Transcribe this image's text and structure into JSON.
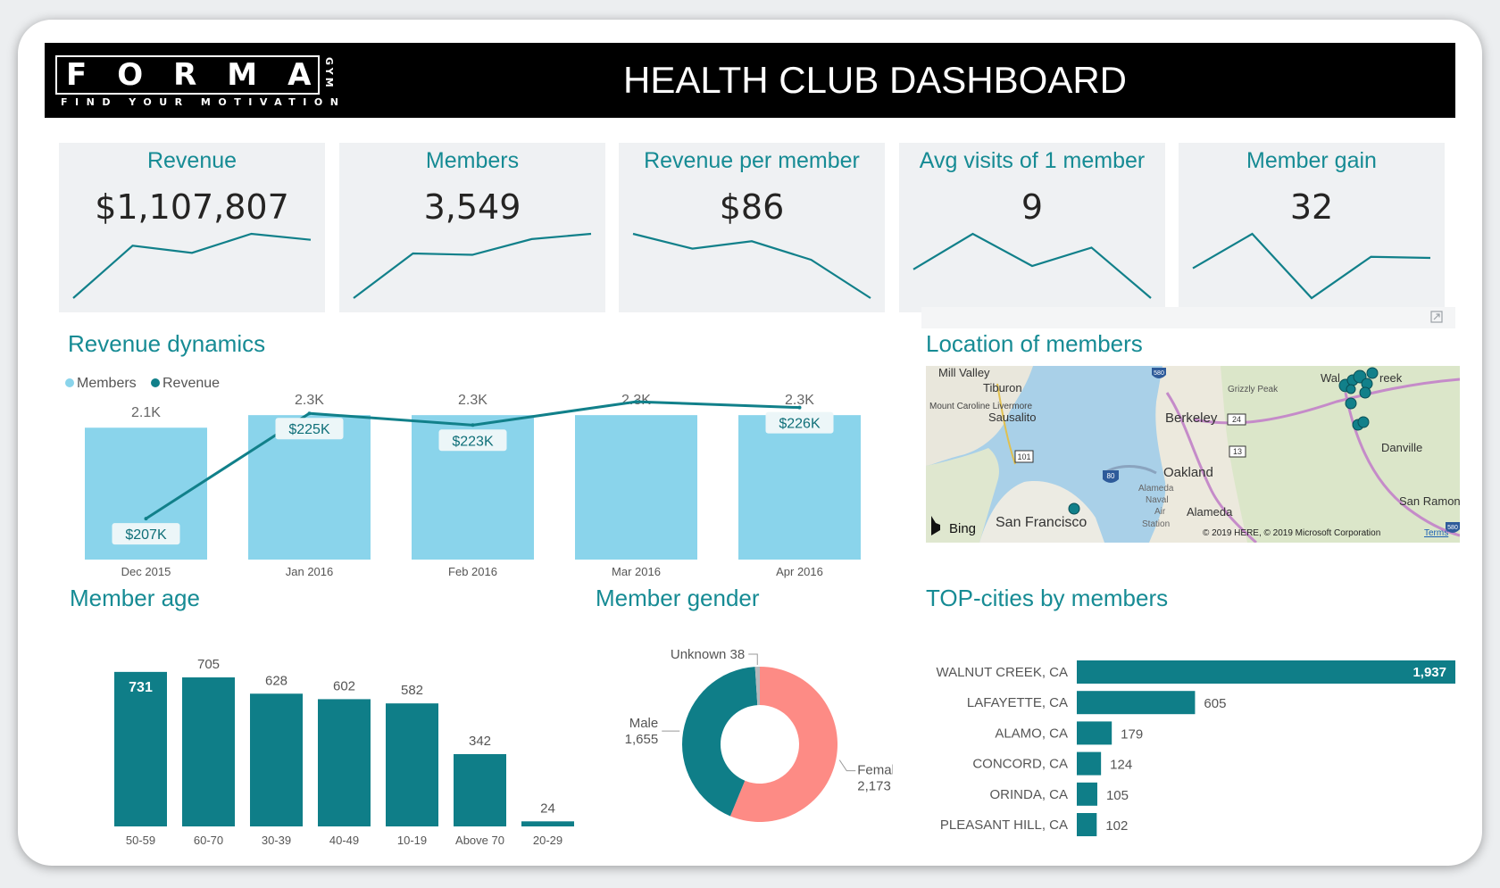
{
  "header": {
    "logo": "FORMA",
    "logo_tagline": "FIND YOUR MOTIVATION",
    "logo_side": "GYM",
    "title": "HEALTH CLUB DASHBOARD"
  },
  "kpis": [
    {
      "label": "Revenue",
      "value": "$1,107,807",
      "trend": [
        1.2,
        5.6,
        5.0,
        6.6,
        6.1
      ]
    },
    {
      "label": "Members",
      "value": "3,549",
      "trend": [
        1.0,
        4.4,
        4.3,
        5.5,
        5.9
      ]
    },
    {
      "label": "Revenue per member",
      "value": "$86",
      "trend": [
        6.2,
        5.0,
        5.6,
        4.1,
        1.0
      ]
    },
    {
      "label": "Avg visits of 1 member",
      "value": "9",
      "trend": [
        3.5,
        6.6,
        3.8,
        5.4,
        1.0
      ]
    },
    {
      "label": "Member gain",
      "value": "32",
      "trend": [
        3.6,
        6.6,
        1.0,
        4.6,
        4.5
      ]
    }
  ],
  "sections": {
    "revenue_dynamics": "Revenue dynamics",
    "location": "Location of members",
    "member_age": "Member age",
    "member_gender": "Member gender",
    "top_cities": "TOP-cities by members"
  },
  "map": {
    "places": [
      "Mill Valley",
      "Tiburon",
      "Mount Caroline Livermore",
      "Sausalito",
      "Berkeley",
      "Grizzly Peak",
      "Walnut Creek",
      "Oakland",
      "Alameda Naval Air Station",
      "Alameda",
      "San Francisco",
      "Danville",
      "San Ramon"
    ],
    "place_lines": {
      "walnut_creek": "Wal",
      "walnut_creek_end": "reek",
      "alameda_naval_1": "Alameda",
      "alameda_naval_2": "Naval",
      "alameda_naval_3": "Air",
      "alameda_naval_4": "Station",
      "mount_caroline": "Mount Caroline Livermore"
    },
    "road_shields": [
      "580",
      "24",
      "101",
      "80",
      "13",
      "580"
    ],
    "credit": "© 2019 HERE, © 2019 Microsoft Corporation",
    "terms": "Terms",
    "bing": "Bing"
  },
  "chart_data": [
    {
      "id": "revenue_dynamics",
      "type": "bar",
      "categories": [
        "Dec 2015",
        "Jan 2016",
        "Feb 2016",
        "Mar 2016",
        "Apr 2016"
      ],
      "legend": [
        "Members",
        "Revenue"
      ],
      "series": [
        {
          "name": "Members",
          "kind": "bar",
          "values": [
            2.1,
            2.3,
            2.3,
            2.3,
            2.3
          ],
          "labels": [
            "2.1K",
            "2.3K",
            "2.3K",
            "2.3K",
            "2.3K"
          ],
          "color": "#8ad4eb"
        },
        {
          "name": "Revenue",
          "kind": "line",
          "values": [
            207,
            225,
            223,
            227,
            226
          ],
          "labels": [
            "$207K",
            "$225K",
            "$223K",
            "",
            "$226K"
          ],
          "color": "#11808a"
        }
      ],
      "ylim_members": [
        0,
        2.7
      ],
      "ylim_revenue": [
        200,
        229
      ]
    },
    {
      "id": "member_age",
      "type": "bar",
      "categories": [
        "50-59",
        "60-70",
        "30-39",
        "40-49",
        "10-19",
        "Above 70",
        "20-29"
      ],
      "values": [
        731,
        705,
        628,
        602,
        582,
        342,
        24
      ],
      "color": "#0f7e88",
      "ylim": [
        0,
        760
      ]
    },
    {
      "id": "member_gender",
      "type": "pie",
      "categories": [
        "Female",
        "Male",
        "Unknown"
      ],
      "values": [
        2173,
        1655,
        38
      ],
      "value_labels": [
        "2,173",
        "1,655",
        "38"
      ],
      "colors": [
        "#fd8b85",
        "#0f7e88",
        "#b3b8bc"
      ]
    },
    {
      "id": "top_cities",
      "type": "bar",
      "orientation": "horizontal",
      "categories": [
        "WALNUT CREEK, CA",
        "LAFAYETTE, CA",
        "ALAMO, CA",
        "CONCORD, CA",
        "ORINDA, CA",
        "PLEASANT HILL, CA"
      ],
      "values": [
        1937,
        605,
        179,
        124,
        105,
        102
      ],
      "value_labels": [
        "1,937",
        "605",
        "179",
        "124",
        "105",
        "102"
      ],
      "color": "#0f7e88",
      "xlim": [
        0,
        1937
      ]
    }
  ],
  "colors": {
    "accent": "#168b94",
    "teal": "#0f7e88",
    "light_blue": "#8ad4eb",
    "salmon": "#fd8b85"
  }
}
